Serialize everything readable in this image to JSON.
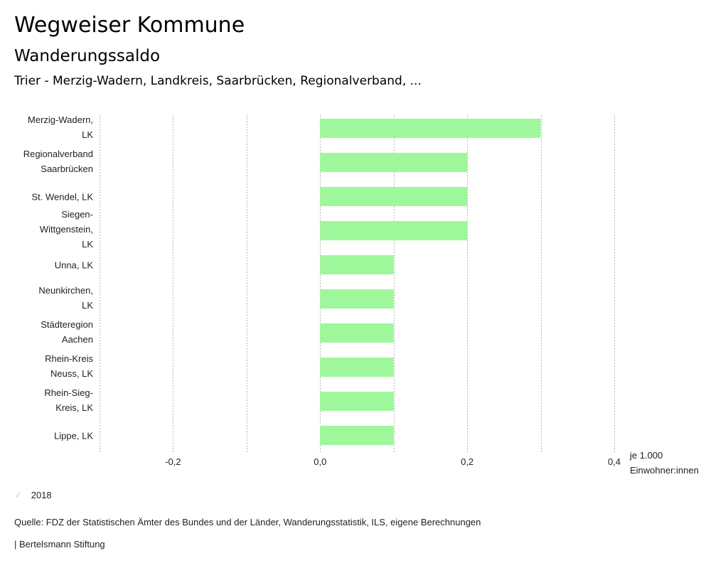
{
  "header": {
    "title": "Wegweiser Kommune",
    "subtitle": "Wanderungssaldo",
    "region": "Trier - Merzig-Wadern, Landkreis, Saarbrücken, Regionalverband, ..."
  },
  "chart_data": {
    "type": "bar",
    "orientation": "horizontal",
    "title": "Wanderungssaldo",
    "categories": [
      [
        "Merzig-Wadern,",
        "LK"
      ],
      [
        "Regionalverband",
        "Saarbrücken"
      ],
      [
        "St. Wendel, LK"
      ],
      [
        "Siegen-",
        "Wittgenstein,",
        "LK"
      ],
      [
        "Unna, LK"
      ],
      [
        "Neunkirchen,",
        "LK"
      ],
      [
        "Städteregion",
        "Aachen"
      ],
      [
        "Rhein-Kreis",
        "Neuss, LK"
      ],
      [
        "Rhein-Sieg-",
        "Kreis, LK"
      ],
      [
        "Lippe, LK"
      ]
    ],
    "series": [
      {
        "name": "2018",
        "color": "#9ef79a",
        "values": [
          0.3,
          0.2,
          0.2,
          0.2,
          0.1,
          0.1,
          0.1,
          0.1,
          0.1,
          0.1
        ]
      }
    ],
    "xlim": [
      -0.3,
      0.4
    ],
    "gridlines": [
      -0.3,
      -0.2,
      -0.1,
      0.0,
      0.1,
      0.2,
      0.3,
      0.4
    ],
    "tick_values": [
      -0.2,
      0.0,
      0.2,
      0.4
    ],
    "tick_labels": [
      "-0,2",
      "0,0",
      "0,2",
      "0,4"
    ],
    "xlabel": [
      "je 1.000",
      "Einwohner:innen"
    ],
    "grid": true,
    "legend": "bottom-left"
  },
  "legend": {
    "label": "2018",
    "icon": "check-icon",
    "color": "#9ef79a"
  },
  "footer": {
    "source": "Quelle: FDZ der Statistischen Ämter des Bundes und der Länder, Wanderungsstatistik, ILS, eigene Berechnungen",
    "brand": "| Bertelsmann Stiftung"
  }
}
